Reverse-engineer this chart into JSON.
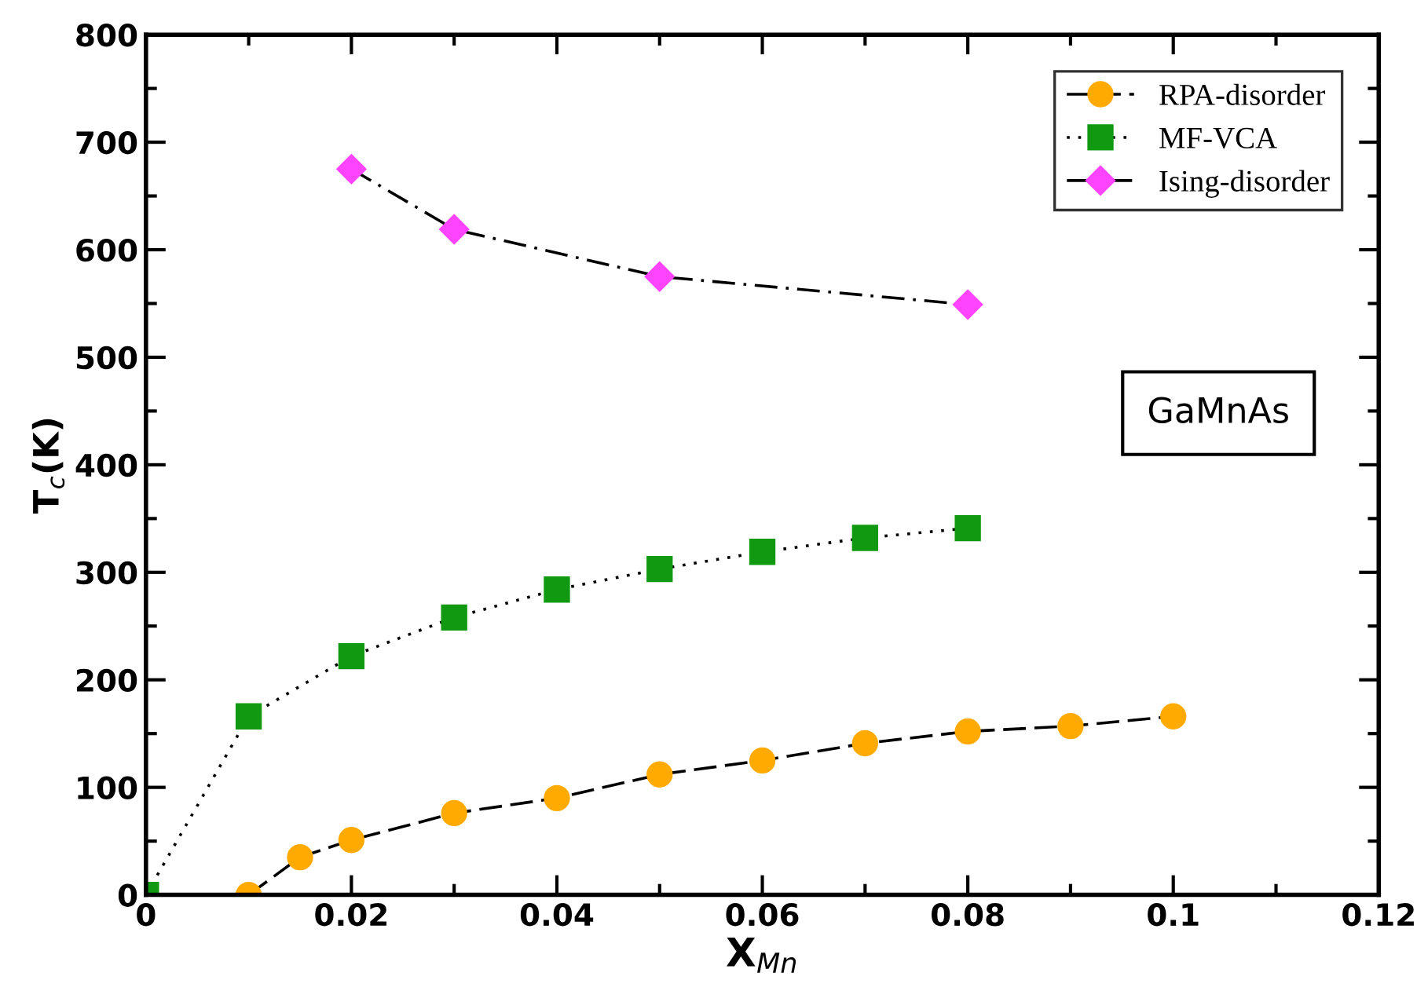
{
  "chart_data": {
    "type": "line",
    "xlabel": "X$_{Mn}$",
    "ylabel": "T$_{c}$(K)",
    "xlim": [
      0,
      0.12
    ],
    "xticks": [
      0,
      0.02,
      0.04,
      0.06,
      0.08,
      0.1,
      0.12
    ],
    "ylim": [
      0,
      800
    ],
    "yticks": [
      0,
      100,
      200,
      300,
      400,
      500,
      600,
      700,
      800
    ],
    "grid": false,
    "legend": "top right",
    "annotations": [
      "GaMnAs"
    ],
    "series": [
      {
        "name": "RPA-disorder",
        "color": "#ffaa00",
        "marker": "circle",
        "line_style": "dashed",
        "x": [
          0.01,
          0.015,
          0.02,
          0.03,
          0.04,
          0.05,
          0.06,
          0.07,
          0.08,
          0.09,
          0.1
        ],
        "values": [
          0,
          35,
          51,
          76,
          90,
          112,
          125,
          141,
          152,
          157,
          166
        ]
      },
      {
        "name": "MF-VCA",
        "color": "#119911",
        "marker": "square",
        "line_style": "dotted",
        "x": [
          0,
          0.01,
          0.02,
          0.03,
          0.04,
          0.05,
          0.06,
          0.07,
          0.08
        ],
        "values": [
          0,
          166,
          222,
          258,
          284,
          303,
          319,
          332,
          341
        ]
      },
      {
        "name": "Ising-disorder",
        "color": "#ff44ff",
        "marker": "diamond",
        "line_style": "dashdot",
        "x": [
          0.02,
          0.03,
          0.05,
          0.08
        ],
        "values": [
          675,
          619,
          575,
          549
        ]
      }
    ]
  }
}
